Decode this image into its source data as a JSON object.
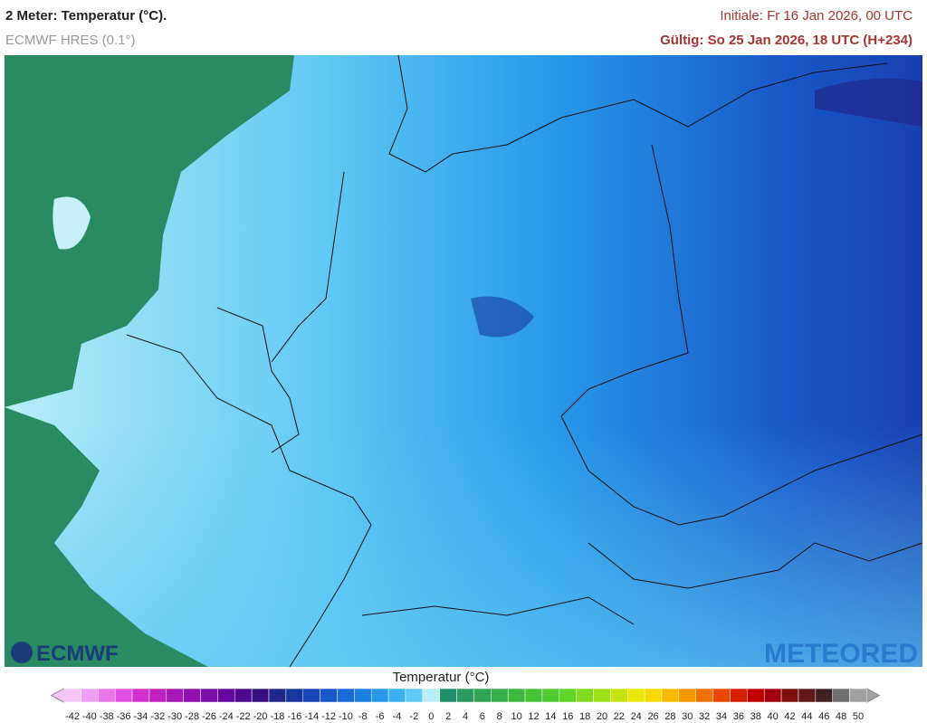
{
  "header": {
    "title": "2 Meter: Temperatur (°C).",
    "model": "ECMWF HRES (0.1°)",
    "init": "Initiale: Fr 16 Jan 2026, 00 UTC",
    "valid": "Gültig: So 25 Jan 2026, 18 UTC (H+234)"
  },
  "logos": {
    "left": "ECMWF",
    "right": "METEORED"
  },
  "legend": {
    "title": "Temperatur (°C)",
    "ticks": [
      -42,
      -40,
      -38,
      -36,
      -34,
      -32,
      -30,
      -28,
      -26,
      -24,
      -22,
      -20,
      -18,
      -16,
      -14,
      -12,
      -10,
      -8,
      -6,
      -4,
      -2,
      0,
      2,
      4,
      6,
      8,
      10,
      12,
      14,
      16,
      18,
      20,
      22,
      24,
      26,
      28,
      30,
      32,
      34,
      36,
      38,
      40,
      42,
      44,
      46,
      48,
      50
    ],
    "colors": [
      "#f7c6f7",
      "#f0a0f0",
      "#e878e8",
      "#e050e0",
      "#d030d0",
      "#c020c0",
      "#a818b8",
      "#9010b0",
      "#7a10a8",
      "#6408a0",
      "#500890",
      "#3a1080",
      "#20288c",
      "#1838a0",
      "#1848b8",
      "#1858c8",
      "#1a6ad8",
      "#1c80e0",
      "#2898e8",
      "#3cb0f0",
      "#60c8f4",
      "#b8eef8",
      "#20906a",
      "#2a9a60",
      "#30a455",
      "#38ae4a",
      "#40b840",
      "#48c238",
      "#50cc30",
      "#60d428",
      "#80dc20",
      "#a0e018",
      "#c8e410",
      "#e8e808",
      "#f8d800",
      "#f8b800",
      "#f89800",
      "#f07000",
      "#e84800",
      "#d82000",
      "#c00000",
      "#a00010",
      "#801010",
      "#601818",
      "#402020",
      "#707070",
      "#a0a0a0"
    ]
  }
}
